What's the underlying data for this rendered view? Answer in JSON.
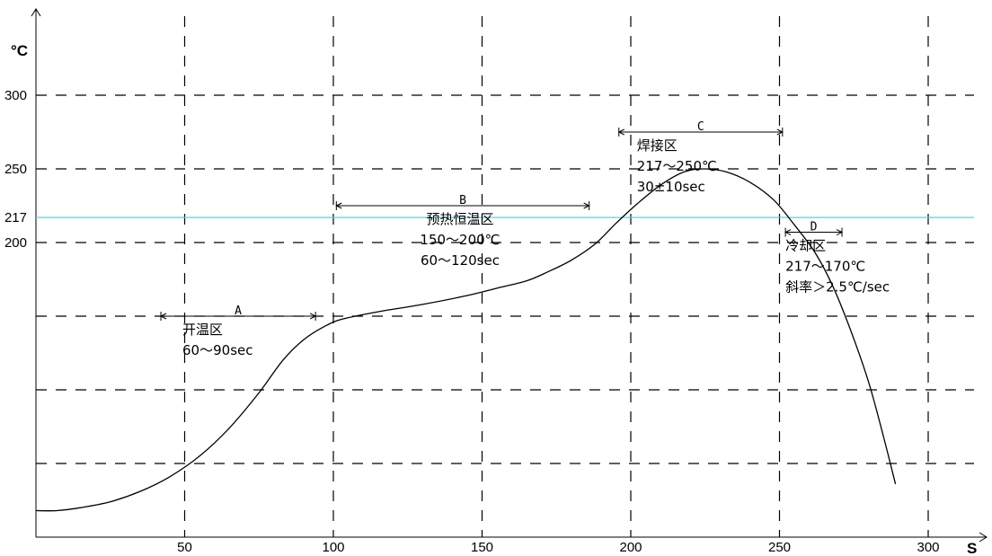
{
  "chart_data": {
    "type": "line",
    "x_unit": "S",
    "y_unit": "°C",
    "xlim": [
      0,
      320
    ],
    "ylim": [
      0,
      330
    ],
    "x_gridlines": [
      50,
      100,
      150,
      200,
      250,
      300
    ],
    "y_gridlines": [
      50,
      100,
      150,
      200,
      250,
      300
    ],
    "x_tick_labels": [
      {
        "v": 50,
        "t": "50"
      },
      {
        "v": 100,
        "t": "100"
      },
      {
        "v": 150,
        "t": "150"
      },
      {
        "v": 200,
        "t": "200"
      },
      {
        "v": 250,
        "t": "250"
      },
      {
        "v": 300,
        "t": "300"
      }
    ],
    "y_tick_labels": [
      {
        "v": 200,
        "t": "200"
      },
      {
        "v": 217,
        "t": "217"
      },
      {
        "v": 250,
        "t": "250"
      },
      {
        "v": 300,
        "t": "300"
      }
    ],
    "reference_line": {
      "y": 217,
      "color": "#4fd3e6"
    },
    "series": [
      {
        "color": "#000000",
        "x": [
          0,
          7,
          15,
          25,
          35,
          45,
          55,
          65,
          75,
          83,
          90,
          97,
          103,
          115,
          130,
          145,
          155,
          165,
          172,
          180,
          188,
          195,
          202,
          210,
          218,
          225,
          232,
          240,
          248,
          255,
          262,
          268,
          274,
          280,
          285,
          289
        ],
        "y": [
          18,
          18,
          20,
          24,
          31,
          41,
          55,
          74,
          98,
          120,
          134,
          143,
          148,
          153,
          158,
          164,
          169,
          174,
          180,
          188,
          199,
          213,
          226,
          239,
          248,
          250,
          248,
          241,
          229,
          212,
          193,
          170,
          140,
          105,
          68,
          36
        ]
      }
    ],
    "zones": [
      {
        "letter": "A",
        "x1": 42,
        "x2": 94,
        "y": 150,
        "lines": [
          "开温区",
          "60～90sec"
        ]
      },
      {
        "letter": "B",
        "x1": 101,
        "x2": 186,
        "y": 225,
        "lines": [
          "预热恒温区",
          "150～200℃",
          "60～120sec"
        ]
      },
      {
        "letter": "C",
        "x1": 196,
        "x2": 251,
        "y": 275,
        "lines": [
          "焊接区",
          "217～250℃",
          "30±10sec"
        ]
      },
      {
        "letter": "D",
        "x1": 252,
        "x2": 271,
        "y": 207,
        "lines": [
          "冷却区",
          "217～170℃",
          "斜率＞2.5℃/sec"
        ]
      }
    ]
  }
}
